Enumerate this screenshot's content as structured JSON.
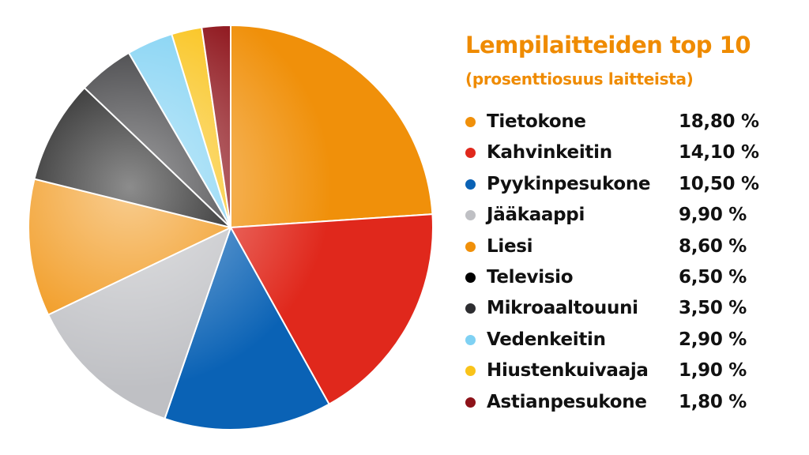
{
  "chart_data": {
    "type": "pie",
    "title": "Lempilaitteiden top 10",
    "subtitle": "(prosenttiosuus laitteista)",
    "categories": [
      "Tietokone",
      "Kahvinkeitin",
      "Pyykinpesukone",
      "Jääkaappi",
      "Liesi",
      "Televisio",
      "Mikroaaltouuni",
      "Vedenkeitin",
      "Hiustenkuivaaja",
      "Astianpesukone"
    ],
    "values": [
      18.8,
      14.1,
      10.5,
      9.9,
      8.6,
      6.5,
      3.5,
      2.9,
      1.9,
      1.8
    ],
    "value_labels": [
      "18,80 %",
      "14,10 %",
      "10,50 %",
      "9,90 %",
      "8,60 %",
      "6,50 %",
      "3,50 %",
      "2,90 %",
      "1,90 %",
      "1,80 %"
    ],
    "colors": [
      "#f0900a",
      "#e0281c",
      "#0a62b5",
      "#bfc0c4",
      "#f0900a",
      "#000000",
      "#2d2d30",
      "#7fd1f3",
      "#f9c31a",
      "#8d1219"
    ],
    "legend_position": "right"
  }
}
